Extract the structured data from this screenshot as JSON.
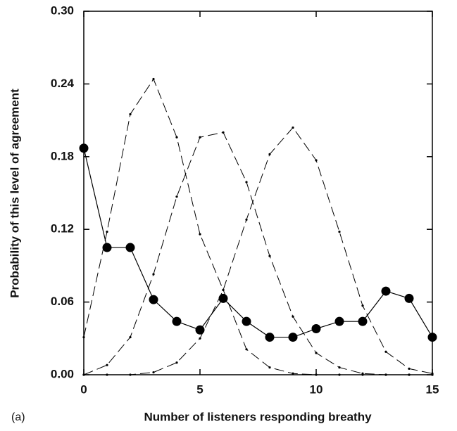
{
  "chart_data": {
    "type": "line",
    "x_label": "Number of listeners responding breathy",
    "y_label": "Probability of this level of agreement",
    "annotation": "(a)",
    "x": [
      0,
      1,
      2,
      3,
      4,
      5,
      6,
      7,
      8,
      9,
      10,
      11,
      12,
      13,
      14,
      15
    ],
    "series": [
      {
        "color": "#000000",
        "line_style": "solid",
        "marker": "large",
        "values": [
          0.187,
          0.105,
          0.105,
          0.062,
          0.044,
          0.037,
          0.063,
          0.044,
          0.031,
          0.031,
          0.038,
          0.044,
          0.044,
          0.069,
          0.063,
          0.031
        ]
      },
      {
        "color": "#000000",
        "line_style": "dashed",
        "marker": "small",
        "values": [
          0.031,
          0.118,
          0.215,
          0.244,
          0.196,
          0.116,
          0.07,
          0.021,
          0.006,
          0.001,
          0,
          0,
          0,
          0,
          0,
          0
        ]
      },
      {
        "color": "#000000",
        "line_style": "dashed",
        "marker": "small",
        "values": [
          0,
          0.008,
          0.031,
          0.083,
          0.147,
          0.196,
          0.2,
          0.159,
          0.098,
          0.048,
          0.018,
          0.006,
          0.001,
          0,
          0,
          0
        ]
      },
      {
        "color": "#000000",
        "line_style": "dashed",
        "marker": "small",
        "values": [
          0,
          0,
          0,
          0.002,
          0.01,
          0.03,
          0.07,
          0.128,
          0.182,
          0.204,
          0.177,
          0.118,
          0.057,
          0.019,
          0.005,
          0.001
        ]
      }
    ],
    "xlim": [
      0,
      15
    ],
    "xticks": [
      0,
      5,
      10,
      15
    ],
    "ylim": [
      0,
      0.3
    ],
    "yticks": [
      {
        "value": 0,
        "label": "0.00"
      },
      0.06,
      0.12,
      0.18,
      0.24,
      {
        "value": 0.3,
        "label": "0.30"
      }
    ]
  }
}
